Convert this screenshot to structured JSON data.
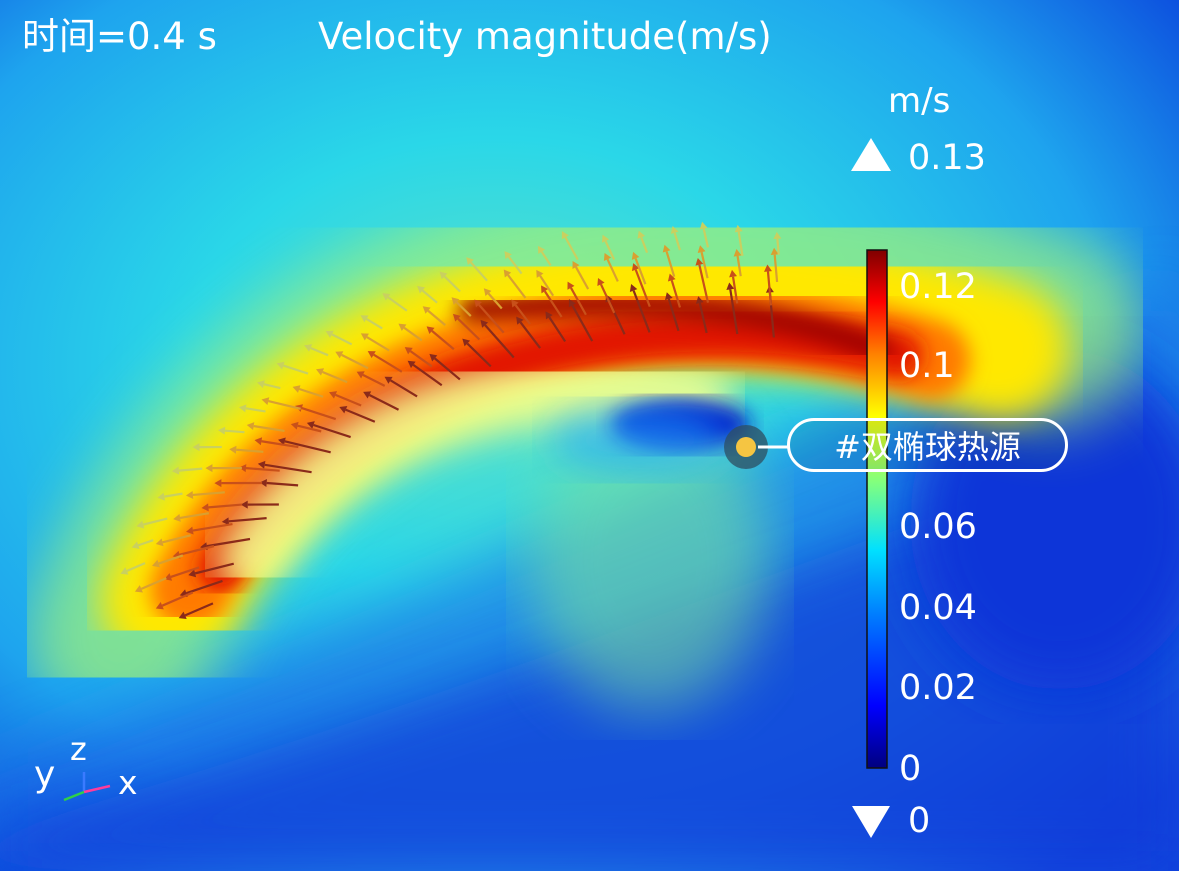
{
  "header": {
    "time_label": "时间=0.4 s",
    "title": "Velocity magnitude(m/s)"
  },
  "colorbar": {
    "unit": "m/s",
    "max_label": "0.13",
    "min_label": "0",
    "range": [
      0,
      0.13
    ],
    "ticks": [
      "0.12",
      "0.1",
      "0.06",
      "0.04",
      "0.02",
      "0"
    ],
    "colormap": [
      "#00007f",
      "#0000ff",
      "#0080ff",
      "#00e0ff",
      "#80ff80",
      "#ffff00",
      "#ff8000",
      "#ff0000",
      "#7f0000"
    ]
  },
  "annotation": {
    "tag": "#双椭球热源",
    "dot_color": "#f5c542"
  },
  "axes_triad": {
    "y": "y",
    "z": "z",
    "x": "x"
  }
}
